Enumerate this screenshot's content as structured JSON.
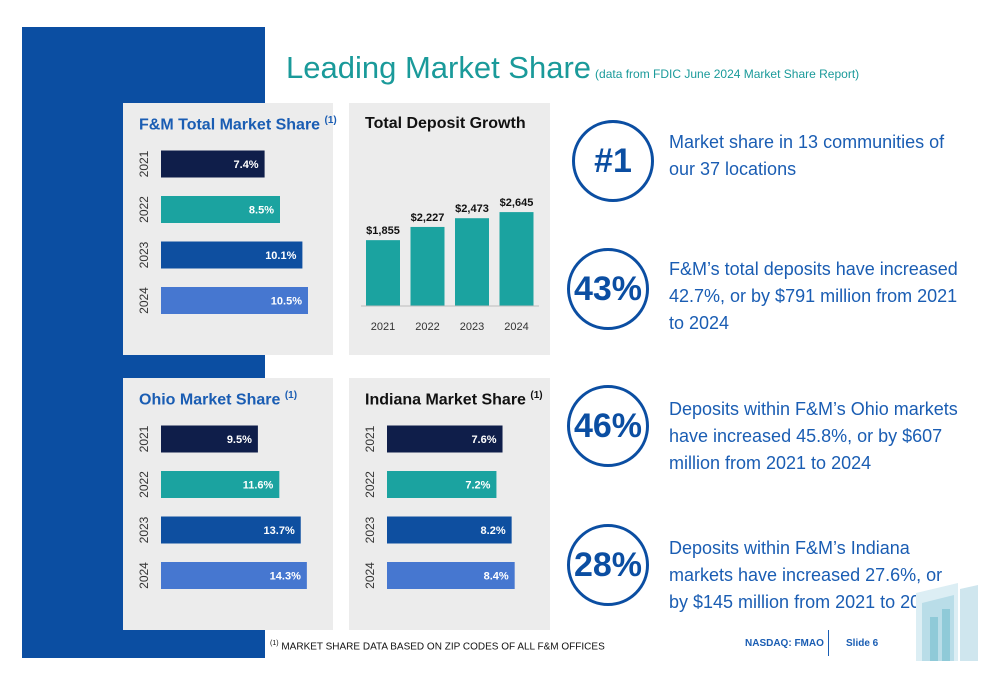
{
  "header": {
    "title": "Leading Market Share",
    "subtitle": "(data from FDIC June 2024 Market Share Report)"
  },
  "colors": {
    "navy": "#0f1e4a",
    "teal": "#1ba3a0",
    "blue": "#0e4fa0",
    "lightblue": "#4677d0"
  },
  "chart_data": [
    {
      "type": "bar",
      "orientation": "horizontal",
      "title": "F&M Total Market Share",
      "title_sup": "(1)",
      "categories": [
        "2021",
        "2022",
        "2023",
        "2024"
      ],
      "values": [
        7.4,
        8.5,
        10.1,
        10.5
      ],
      "labels": [
        "7.4%",
        "8.5%",
        "10.1%",
        "10.5%"
      ]
    },
    {
      "type": "bar",
      "orientation": "vertical",
      "title": "Total Deposit Growth",
      "categories": [
        "2021",
        "2022",
        "2023",
        "2024"
      ],
      "values": [
        1855,
        2227,
        2473,
        2645
      ],
      "labels": [
        "$1,855",
        "$2,227",
        "$2,473",
        "$2,645"
      ]
    },
    {
      "type": "bar",
      "orientation": "horizontal",
      "title": "Ohio Market Share",
      "title_sup": "(1)",
      "categories": [
        "2021",
        "2022",
        "2023",
        "2024"
      ],
      "values": [
        9.5,
        11.6,
        13.7,
        14.3
      ],
      "labels": [
        "9.5%",
        "11.6%",
        "13.7%",
        "14.3%"
      ]
    },
    {
      "type": "bar",
      "orientation": "horizontal",
      "title": "Indiana Market Share",
      "title_sup": "(1)",
      "categories": [
        "2021",
        "2022",
        "2023",
        "2024"
      ],
      "values": [
        7.6,
        7.2,
        8.2,
        8.4
      ],
      "labels": [
        "7.6%",
        "7.2%",
        "8.2%",
        "8.4%"
      ]
    }
  ],
  "stats": [
    {
      "big": "#1",
      "text": "Market share in 13 communities of our 37 locations"
    },
    {
      "big": "43%",
      "text": "F&M’s total deposits have increased 42.7%, or by $791 million from 2021 to 2024"
    },
    {
      "big": "46%",
      "text": "Deposits within F&M’s Ohio markets have increased 45.8%, or by $607 million from 2021 to 2024"
    },
    {
      "big": "28%",
      "text": "Deposits within F&M’s Indiana markets have increased 27.6%, or by $145 million from 2021 to 2024"
    }
  ],
  "footer": {
    "footnote_sup": "(1)",
    "footnote": "MARKET SHARE DATA BASED ON ZIP CODES OF ALL F&M OFFICES",
    "nasdaq": "NASDAQ: FMAO",
    "slide": "Slide 6"
  }
}
